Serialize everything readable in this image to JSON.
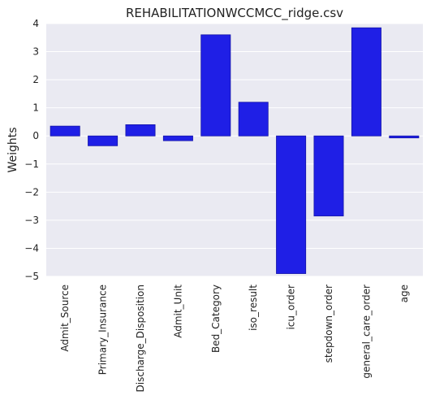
{
  "chart_data": {
    "type": "bar",
    "title": "REHABILITATIONWCCMCC_ridge.csv",
    "xlabel": "",
    "ylabel": "Weights",
    "categories": [
      "Admit_Source",
      "Primary_Insurance",
      "Discharge_Disposition",
      "Admit_Unit",
      "Bed_Category",
      "iso_result",
      "icu_order",
      "stepdown_order",
      "general_care_order",
      "age"
    ],
    "values": [
      0.35,
      -0.35,
      0.4,
      -0.17,
      3.6,
      1.2,
      -4.9,
      -2.85,
      3.85,
      -0.07
    ],
    "ylim": [
      -5,
      4
    ],
    "yticks": [
      "−5",
      "−4",
      "−3",
      "−2",
      "−1",
      "0",
      "1",
      "2",
      "3",
      "4"
    ],
    "grid": true,
    "colors": {
      "bar": "#1f1fe6",
      "bar_edge": "#1414a8",
      "plot_bg": "#eaeaf2",
      "grid": "#ffffff"
    }
  }
}
